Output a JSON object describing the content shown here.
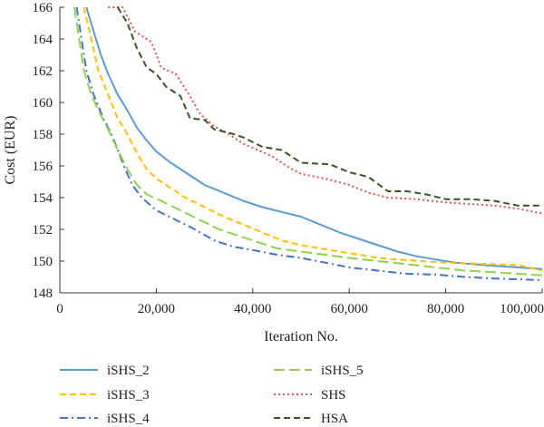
{
  "chart_data": {
    "type": "line",
    "title": "",
    "xlabel": "Iteration No.",
    "ylabel": "Cost (EUR)",
    "xlim": [
      0,
      100000
    ],
    "ylim": [
      148,
      166
    ],
    "xticks": [
      0,
      20000,
      40000,
      60000,
      80000,
      100000
    ],
    "xtick_labels": [
      "0",
      "20,000",
      "40,000",
      "60,000",
      "80,000",
      "100,000"
    ],
    "yticks": [
      148,
      150,
      152,
      154,
      156,
      158,
      160,
      162,
      164,
      166
    ],
    "ytick_labels": [
      "148",
      "150",
      "152",
      "154",
      "156",
      "158",
      "160",
      "162",
      "164",
      "166"
    ],
    "grid": false,
    "legend_position": "bottom",
    "series": [
      {
        "name": "iSHS_2",
        "color": "#5b9bd5",
        "dash": "solid",
        "points": [
          [
            5500,
            166
          ],
          [
            7000,
            164.5
          ],
          [
            8500,
            163
          ],
          [
            10000,
            161.8
          ],
          [
            12000,
            160.5
          ],
          [
            14000,
            159.5
          ],
          [
            16000,
            158.4
          ],
          [
            18000,
            157.6
          ],
          [
            20000,
            156.9
          ],
          [
            23000,
            156.2
          ],
          [
            26000,
            155.6
          ],
          [
            30000,
            154.8
          ],
          [
            34000,
            154.3
          ],
          [
            38000,
            153.8
          ],
          [
            42000,
            153.4
          ],
          [
            46000,
            153.1
          ],
          [
            50000,
            152.8
          ],
          [
            54000,
            152.3
          ],
          [
            58000,
            151.8
          ],
          [
            62000,
            151.4
          ],
          [
            66000,
            151
          ],
          [
            70000,
            150.6
          ],
          [
            74000,
            150.3
          ],
          [
            78000,
            150.1
          ],
          [
            82000,
            149.9
          ],
          [
            86000,
            149.8
          ],
          [
            90000,
            149.7
          ],
          [
            95000,
            149.6
          ],
          [
            100000,
            149.5
          ]
        ]
      },
      {
        "name": "iSHS_3",
        "color": "#ffc000",
        "dash": "dashed",
        "points": [
          [
            5000,
            166
          ],
          [
            6500,
            164
          ],
          [
            8000,
            162
          ],
          [
            10000,
            160.5
          ],
          [
            12000,
            159
          ],
          [
            14000,
            158
          ],
          [
            16000,
            156.8
          ],
          [
            18000,
            155.8
          ],
          [
            20000,
            155.2
          ],
          [
            23000,
            154.6
          ],
          [
            26000,
            154
          ],
          [
            30000,
            153.4
          ],
          [
            34000,
            152.8
          ],
          [
            38000,
            152.3
          ],
          [
            42000,
            151.8
          ],
          [
            46000,
            151.3
          ],
          [
            50000,
            151
          ],
          [
            54000,
            150.8
          ],
          [
            58000,
            150.6
          ],
          [
            62000,
            150.4
          ],
          [
            66000,
            150.2
          ],
          [
            70000,
            150.1
          ],
          [
            75000,
            150
          ],
          [
            80000,
            149.9
          ],
          [
            85000,
            149.85
          ],
          [
            90000,
            149.8
          ],
          [
            95000,
            149.75
          ],
          [
            100000,
            149.4
          ]
        ]
      },
      {
        "name": "iSHS_4",
        "color": "#4472c4",
        "dash": "dash-dot",
        "points": [
          [
            3500,
            166
          ],
          [
            4500,
            164
          ],
          [
            5500,
            162
          ],
          [
            7000,
            160.5
          ],
          [
            9000,
            159
          ],
          [
            11000,
            157.8
          ],
          [
            13000,
            156.2
          ],
          [
            15000,
            154.8
          ],
          [
            17000,
            154
          ],
          [
            20000,
            153.2
          ],
          [
            24000,
            152.6
          ],
          [
            28000,
            152
          ],
          [
            32000,
            151.3
          ],
          [
            36000,
            150.9
          ],
          [
            40000,
            150.7
          ],
          [
            45000,
            150.4
          ],
          [
            50000,
            150.2
          ],
          [
            55000,
            149.9
          ],
          [
            60000,
            149.6
          ],
          [
            66000,
            149.4
          ],
          [
            72000,
            149.2
          ],
          [
            78000,
            149.15
          ],
          [
            84000,
            149
          ],
          [
            90000,
            148.9
          ],
          [
            95000,
            148.85
          ],
          [
            100000,
            148.8
          ]
        ]
      },
      {
        "name": "iSHS_5",
        "color": "#92d050",
        "dash": "long-dash",
        "points": [
          [
            3000,
            166
          ],
          [
            4000,
            164
          ],
          [
            5000,
            162
          ],
          [
            6500,
            160.5
          ],
          [
            8000,
            159.5
          ],
          [
            10000,
            158.3
          ],
          [
            12000,
            157
          ],
          [
            14000,
            155.8
          ],
          [
            16000,
            154.8
          ],
          [
            18000,
            154.2
          ],
          [
            21000,
            153.8
          ],
          [
            25000,
            153.2
          ],
          [
            29000,
            152.6
          ],
          [
            33000,
            152
          ],
          [
            37000,
            151.6
          ],
          [
            41000,
            151.2
          ],
          [
            45000,
            150.8
          ],
          [
            50000,
            150.6
          ],
          [
            55000,
            150.4
          ],
          [
            60000,
            150.2
          ],
          [
            66000,
            150
          ],
          [
            72000,
            149.8
          ],
          [
            78000,
            149.6
          ],
          [
            84000,
            149.4
          ],
          [
            90000,
            149.3
          ],
          [
            95000,
            149.2
          ],
          [
            100000,
            149.1
          ]
        ]
      },
      {
        "name": "SHS",
        "color": "#e05050",
        "dash": "dotted",
        "points": [
          [
            10000,
            166
          ],
          [
            13000,
            166
          ],
          [
            15500,
            164.5
          ],
          [
            19000,
            163.8
          ],
          [
            21000,
            162.2
          ],
          [
            24000,
            161.8
          ],
          [
            27000,
            160.4
          ],
          [
            29000,
            159.3
          ],
          [
            32000,
            158.5
          ],
          [
            35000,
            158
          ],
          [
            38000,
            157.4
          ],
          [
            41000,
            157
          ],
          [
            44000,
            156.6
          ],
          [
            47000,
            156
          ],
          [
            50000,
            155.5
          ],
          [
            55000,
            155.2
          ],
          [
            60000,
            154.8
          ],
          [
            64000,
            154.3
          ],
          [
            68000,
            154
          ],
          [
            74000,
            153.9
          ],
          [
            80000,
            153.7
          ],
          [
            85000,
            153.6
          ],
          [
            90000,
            153.5
          ],
          [
            95000,
            153.3
          ],
          [
            100000,
            153
          ]
        ]
      },
      {
        "name": "HSA",
        "color": "#375623",
        "dash": "dashed",
        "points": [
          [
            12000,
            166
          ],
          [
            14000,
            165
          ],
          [
            16000,
            163.4
          ],
          [
            18000,
            162.2
          ],
          [
            20000,
            161.8
          ],
          [
            22000,
            161
          ],
          [
            25000,
            160.4
          ],
          [
            27000,
            159
          ],
          [
            30000,
            158.9
          ],
          [
            32000,
            158.3
          ],
          [
            35000,
            158.1
          ],
          [
            38000,
            157.8
          ],
          [
            42000,
            157.2
          ],
          [
            46000,
            157
          ],
          [
            50000,
            156.2
          ],
          [
            56000,
            156.1
          ],
          [
            60000,
            155.6
          ],
          [
            64000,
            155.3
          ],
          [
            68000,
            154.4
          ],
          [
            72000,
            154.4
          ],
          [
            76000,
            154.2
          ],
          [
            80000,
            153.9
          ],
          [
            85000,
            153.9
          ],
          [
            90000,
            153.8
          ],
          [
            95000,
            153.5
          ],
          [
            100000,
            153.5
          ]
        ]
      }
    ]
  }
}
